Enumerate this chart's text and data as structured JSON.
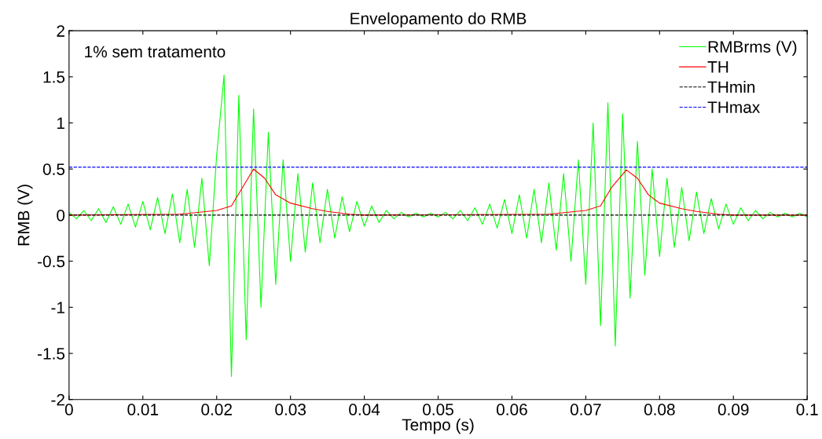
{
  "chart_data": {
    "type": "line",
    "title": "Envelopamento do RMB",
    "xlabel": "Tempo (s)",
    "ylabel": "RMB (V)",
    "xlim": [
      0,
      0.1
    ],
    "ylim": [
      -2,
      2
    ],
    "xticks": [
      0,
      0.01,
      0.02,
      0.03,
      0.04,
      0.05,
      0.06,
      0.07,
      0.08,
      0.09,
      0.1
    ],
    "yticks": [
      -2,
      -1.5,
      -1,
      -0.5,
      0,
      0.5,
      1,
      1.5,
      2
    ],
    "grid": false,
    "legend": "top right",
    "annotations": [
      "1% sem tratamento"
    ],
    "series": [
      {
        "name": "RMBrms (V)",
        "color": "#00ff00",
        "line_style": "solid",
        "x": [
          0,
          0.001,
          0.002,
          0.003,
          0.004,
          0.005,
          0.006,
          0.007,
          0.008,
          0.009,
          0.01,
          0.011,
          0.012,
          0.013,
          0.014,
          0.015,
          0.016,
          0.017,
          0.018,
          0.019,
          0.02,
          0.021,
          0.022,
          0.023,
          0.024,
          0.025,
          0.026,
          0.027,
          0.028,
          0.029,
          0.03,
          0.031,
          0.032,
          0.033,
          0.034,
          0.035,
          0.036,
          0.037,
          0.038,
          0.039,
          0.04,
          0.041,
          0.042,
          0.043,
          0.044,
          0.045,
          0.046,
          0.047,
          0.048,
          0.049,
          0.05,
          0.051,
          0.052,
          0.053,
          0.054,
          0.055,
          0.056,
          0.057,
          0.058,
          0.059,
          0.06,
          0.061,
          0.062,
          0.063,
          0.064,
          0.065,
          0.066,
          0.067,
          0.068,
          0.069,
          0.07,
          0.071,
          0.072,
          0.073,
          0.074,
          0.075,
          0.076,
          0.077,
          0.078,
          0.079,
          0.08,
          0.081,
          0.082,
          0.083,
          0.084,
          0.085,
          0.086,
          0.087,
          0.088,
          0.089,
          0.09,
          0.091,
          0.092,
          0.093,
          0.094,
          0.095,
          0.096,
          0.097,
          0.098,
          0.099,
          0.1
        ],
        "values": [
          0.03,
          -0.04,
          0.05,
          -0.06,
          0.07,
          -0.08,
          0.09,
          -0.1,
          0.12,
          -0.13,
          0.15,
          -0.16,
          0.19,
          -0.2,
          0.23,
          -0.3,
          0.28,
          -0.35,
          0.4,
          -0.55,
          0.65,
          1.52,
          -1.75,
          1.3,
          -1.35,
          1.15,
          -1.0,
          0.9,
          -0.75,
          0.6,
          -0.5,
          0.45,
          -0.4,
          0.35,
          -0.3,
          0.28,
          -0.25,
          0.2,
          -0.18,
          0.15,
          -0.12,
          0.1,
          -0.08,
          0.05,
          -0.04,
          0.03,
          -0.02,
          0.02,
          -0.02,
          0.02,
          -0.02,
          0.03,
          -0.04,
          0.05,
          -0.06,
          0.08,
          -0.1,
          0.12,
          -0.14,
          0.17,
          -0.2,
          0.22,
          -0.25,
          0.28,
          -0.3,
          0.35,
          -0.38,
          0.45,
          -0.5,
          0.6,
          -0.75,
          1.0,
          -1.2,
          1.22,
          -1.42,
          1.1,
          -0.9,
          0.8,
          -0.65,
          0.5,
          -0.45,
          0.4,
          -0.35,
          0.3,
          -0.28,
          0.25,
          -0.2,
          0.18,
          -0.15,
          0.12,
          -0.1,
          0.08,
          -0.06,
          0.05,
          -0.04,
          0.03,
          -0.02,
          0.02,
          -0.02,
          0.02,
          -0.02
        ]
      },
      {
        "name": "TH",
        "color": "#ff0000",
        "line_style": "solid",
        "x": [
          0,
          0.015,
          0.02,
          0.022,
          0.0235,
          0.025,
          0.0265,
          0.028,
          0.03,
          0.033,
          0.035,
          0.038,
          0.04,
          0.065,
          0.07,
          0.072,
          0.0735,
          0.0755,
          0.077,
          0.0785,
          0.08,
          0.083,
          0.085,
          0.088,
          0.09,
          0.1
        ],
        "values": [
          0,
          0.01,
          0.05,
          0.1,
          0.3,
          0.5,
          0.4,
          0.22,
          0.13,
          0.07,
          0.04,
          0.01,
          0,
          0.01,
          0.05,
          0.1,
          0.3,
          0.49,
          0.4,
          0.22,
          0.13,
          0.07,
          0.04,
          0.01,
          0,
          0
        ]
      },
      {
        "name": "THmin",
        "color": "#000000",
        "line_style": "dashed",
        "x": [
          0,
          0.1
        ],
        "values": [
          0,
          0
        ]
      },
      {
        "name": "THmax",
        "color": "#0000ff",
        "line_style": "dashed",
        "x": [
          0,
          0.1
        ],
        "values": [
          0.52,
          0.52
        ]
      }
    ]
  }
}
